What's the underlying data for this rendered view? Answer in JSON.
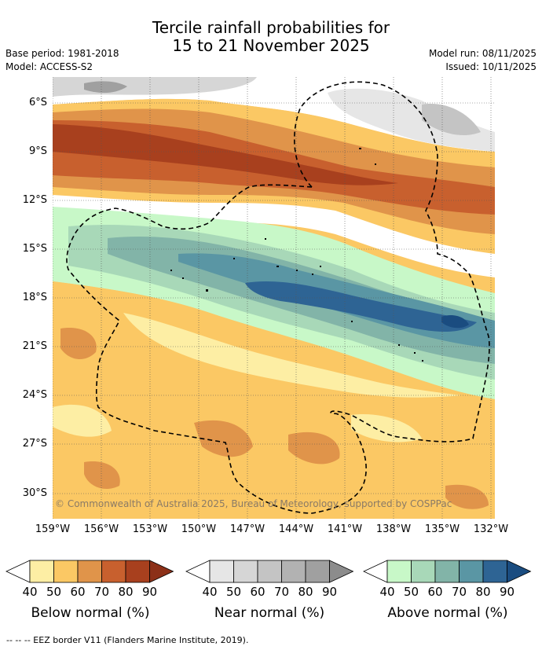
{
  "title_line1": "Tercile rainfall probabilities for",
  "title_line2": "15 to 21 November 2025",
  "base_period": "Base period: 1981-2018",
  "model": "Model: ACCESS-S2",
  "model_run": "Model run: 08/11/2025",
  "issued": "Issued: 10/11/2025",
  "lat_labels": [
    "6°S",
    "9°S",
    "12°S",
    "15°S",
    "18°S",
    "21°S",
    "24°S",
    "27°S",
    "30°S"
  ],
  "lon_labels": [
    "159°W",
    "156°W",
    "153°W",
    "150°W",
    "147°W",
    "144°W",
    "141°W",
    "138°W",
    "135°W",
    "132°W"
  ],
  "copyright": "© Commonwealth of Australia 2025, Bureau of Meteorology, supported by COSPPac",
  "legends": [
    {
      "title": "Below normal (%)",
      "ticks": [
        "40",
        "50",
        "60",
        "70",
        "80",
        "90"
      ],
      "colors": [
        "#ffffff",
        "#fdeea4",
        "#fbc864",
        "#e0944a",
        "#c8602e",
        "#a8401e",
        "#8c3018"
      ]
    },
    {
      "title": "Near normal (%)",
      "ticks": [
        "40",
        "50",
        "60",
        "70",
        "80",
        "90"
      ],
      "colors": [
        "#ffffff",
        "#e6e6e6",
        "#d6d6d6",
        "#c4c4c4",
        "#b2b2b2",
        "#a0a0a0",
        "#8c8c8c"
      ]
    },
    {
      "title": "Above normal (%)",
      "ticks": [
        "40",
        "50",
        "60",
        "70",
        "80",
        "90"
      ],
      "colors": [
        "#ffffff",
        "#c8f8c8",
        "#a8d8b8",
        "#82b4a8",
        "#5a96a4",
        "#2e6494",
        "#1a4c80"
      ]
    }
  ],
  "footnote": "--  --  -- EEZ border V11 (Flanders Marine Institute, 2019)."
}
